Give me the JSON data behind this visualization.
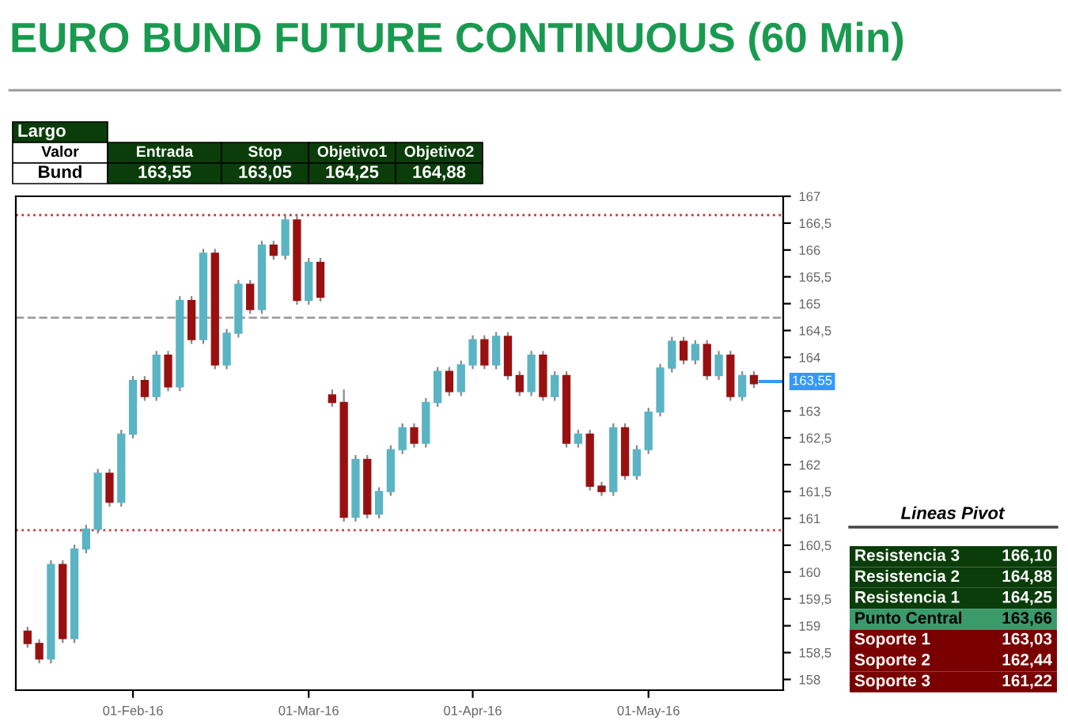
{
  "chart_data": {
    "type": "candlestick",
    "title": "EURO BUND FUTURE CONTINUOUS (60 Min)",
    "categories": [
      null,
      null,
      null,
      null,
      null,
      null,
      null,
      null,
      null,
      "01-Feb-16",
      null,
      null,
      null,
      null,
      null,
      null,
      null,
      null,
      null,
      null,
      null,
      null,
      null,
      null,
      "01-Mar-16",
      null,
      null,
      null,
      null,
      null,
      null,
      null,
      null,
      null,
      null,
      null,
      null,
      null,
      "01-Apr-16",
      null,
      null,
      null,
      null,
      null,
      null,
      null,
      null,
      null,
      null,
      null,
      null,
      null,
      null,
      "01-May-16",
      null,
      null,
      null,
      null,
      null,
      null,
      null,
      null,
      null
    ],
    "ohlc": [
      [
        158.9,
        158.98,
        158.59,
        158.67
      ],
      [
        158.67,
        158.75,
        158.3,
        158.38
      ],
      [
        158.38,
        160.22,
        158.3,
        160.14
      ],
      [
        160.14,
        160.22,
        158.68,
        158.76
      ],
      [
        158.76,
        160.51,
        158.68,
        160.43
      ],
      [
        160.43,
        160.88,
        160.35,
        160.8
      ],
      [
        160.8,
        161.92,
        160.72,
        161.84
      ],
      [
        161.84,
        161.92,
        161.22,
        161.3
      ],
      [
        161.3,
        162.65,
        161.22,
        162.57
      ],
      [
        162.57,
        163.65,
        162.49,
        163.57
      ],
      [
        163.57,
        163.65,
        163.19,
        163.27
      ],
      [
        163.27,
        164.12,
        163.19,
        164.04
      ],
      [
        164.04,
        164.12,
        163.37,
        163.45
      ],
      [
        163.45,
        165.14,
        163.37,
        165.06
      ],
      [
        165.06,
        165.14,
        164.25,
        164.33
      ],
      [
        164.33,
        166.02,
        164.25,
        165.94
      ],
      [
        165.94,
        166.02,
        163.78,
        163.86
      ],
      [
        163.86,
        164.53,
        163.78,
        164.45
      ],
      [
        164.45,
        165.44,
        164.37,
        165.36
      ],
      [
        165.36,
        165.44,
        164.81,
        164.89
      ],
      [
        164.89,
        166.17,
        164.81,
        166.09
      ],
      [
        166.09,
        166.17,
        165.82,
        165.9
      ],
      [
        165.9,
        166.64,
        165.82,
        166.56
      ],
      [
        166.56,
        166.64,
        164.98,
        165.06
      ],
      [
        165.06,
        165.85,
        164.98,
        165.77
      ],
      [
        165.77,
        165.85,
        165.04,
        165.12
      ],
      [
        163.3,
        163.4,
        163.08,
        163.16
      ],
      [
        163.16,
        163.4,
        160.94,
        161.02
      ],
      [
        161.02,
        162.18,
        160.94,
        162.1
      ],
      [
        162.1,
        162.18,
        161.0,
        161.08
      ],
      [
        161.08,
        161.58,
        161.0,
        161.5
      ],
      [
        161.5,
        162.36,
        161.42,
        162.28
      ],
      [
        162.28,
        162.77,
        162.2,
        162.69
      ],
      [
        162.69,
        162.77,
        162.32,
        162.4
      ],
      [
        162.4,
        163.24,
        162.32,
        163.16
      ],
      [
        163.16,
        163.82,
        163.08,
        163.74
      ],
      [
        163.74,
        163.82,
        163.28,
        163.36
      ],
      [
        163.36,
        163.94,
        163.28,
        163.86
      ],
      [
        163.86,
        164.41,
        163.78,
        164.33
      ],
      [
        164.33,
        164.41,
        163.78,
        163.86
      ],
      [
        163.86,
        164.47,
        163.78,
        164.39
      ],
      [
        164.39,
        164.47,
        163.58,
        163.66
      ],
      [
        163.66,
        163.74,
        163.28,
        163.36
      ],
      [
        163.36,
        164.12,
        163.28,
        164.04
      ],
      [
        164.04,
        164.12,
        163.19,
        163.27
      ],
      [
        163.27,
        163.74,
        163.19,
        163.66
      ],
      [
        163.66,
        163.74,
        162.32,
        162.4
      ],
      [
        162.4,
        162.65,
        162.32,
        162.57
      ],
      [
        162.57,
        162.65,
        161.52,
        161.6
      ],
      [
        161.6,
        161.68,
        161.42,
        161.5
      ],
      [
        161.5,
        162.77,
        161.42,
        162.69
      ],
      [
        162.69,
        162.77,
        161.72,
        161.8
      ],
      [
        161.8,
        162.36,
        161.72,
        162.28
      ],
      [
        162.28,
        163.06,
        162.2,
        162.98
      ],
      [
        162.98,
        163.88,
        162.9,
        163.8
      ],
      [
        163.8,
        164.38,
        163.72,
        164.3
      ],
      [
        164.3,
        164.38,
        163.87,
        163.95
      ],
      [
        163.95,
        164.32,
        163.87,
        164.24
      ],
      [
        164.24,
        164.32,
        163.58,
        163.66
      ],
      [
        163.66,
        164.12,
        163.58,
        164.04
      ],
      [
        164.04,
        164.12,
        163.19,
        163.27
      ],
      [
        163.27,
        163.74,
        163.19,
        163.66
      ],
      [
        163.66,
        163.74,
        163.43,
        163.51
      ]
    ],
    "ylim": [
      157.8,
      167.0
    ],
    "yticks": [
      158,
      {
        "value": 158.5,
        "label": "158,5"
      },
      159,
      {
        "value": 159.5,
        "label": "159,5"
      },
      160,
      {
        "value": 160.5,
        "label": "160,5"
      },
      161,
      {
        "value": 161.5,
        "label": "161,5"
      },
      162,
      {
        "value": 162.5,
        "label": "162,5"
      },
      163,
      164,
      {
        "value": 164.5,
        "label": "164,5"
      },
      165,
      {
        "value": 165.5,
        "label": "165,5"
      },
      166,
      {
        "value": 166.5,
        "label": "166,5"
      },
      167
    ],
    "grid": false,
    "ref_lines": [
      {
        "axis": "y",
        "value": 166.65,
        "color": "#c04040",
        "line_style": "dotted"
      },
      {
        "axis": "y",
        "value": 164.74,
        "color": "#a0a0a0",
        "line_style": "dashed"
      },
      {
        "axis": "y",
        "value": 160.78,
        "color": "#c04040",
        "line_style": "dotted"
      },
      {
        "axis": "y",
        "value": 163.55,
        "label": "163,55",
        "color": "#3399ff",
        "line_style": "solid"
      }
    ],
    "annotations": [
      "Largo",
      "Valor",
      "Entrada",
      "Stop",
      "Objetivo1",
      "Objetivo2",
      "Bund",
      "163,55",
      "163,05",
      "164,25",
      "164,88",
      "Lineas Pivot",
      "Resistencia 3",
      "166,10",
      "Resistencia 2",
      "164,88",
      "Resistencia 1",
      "164,25",
      "Punto Central",
      "163,66",
      "Soporte 1",
      "163,03",
      "Soporte 2",
      "162,44",
      "Soporte 3",
      "161,22"
    ]
  }
}
